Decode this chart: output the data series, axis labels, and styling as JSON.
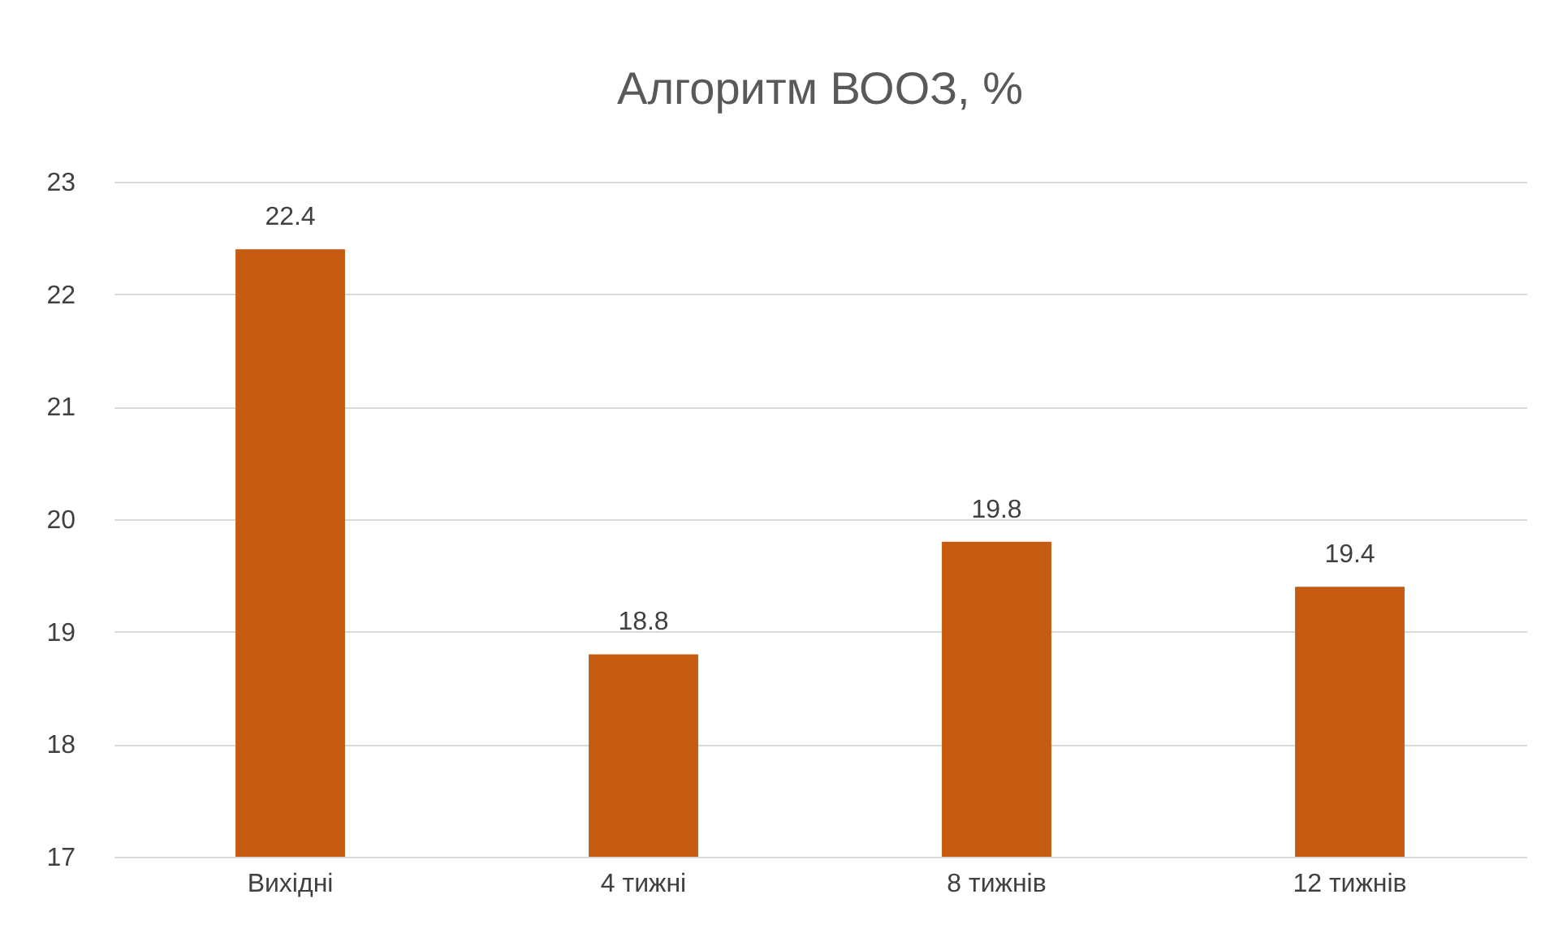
{
  "chart_data": {
    "type": "bar",
    "title": "Алгоритм ВООЗ, %",
    "categories": [
      "Вихідні",
      "4 тижні",
      "8 тижнів",
      "12 тижнів"
    ],
    "values": [
      22.4,
      18.8,
      19.8,
      19.4
    ],
    "color": "#c55a11",
    "ylim": [
      17,
      23
    ],
    "yticks": [
      17,
      18,
      19,
      20,
      21,
      22,
      23
    ],
    "grid": "y",
    "data_labels": true
  }
}
